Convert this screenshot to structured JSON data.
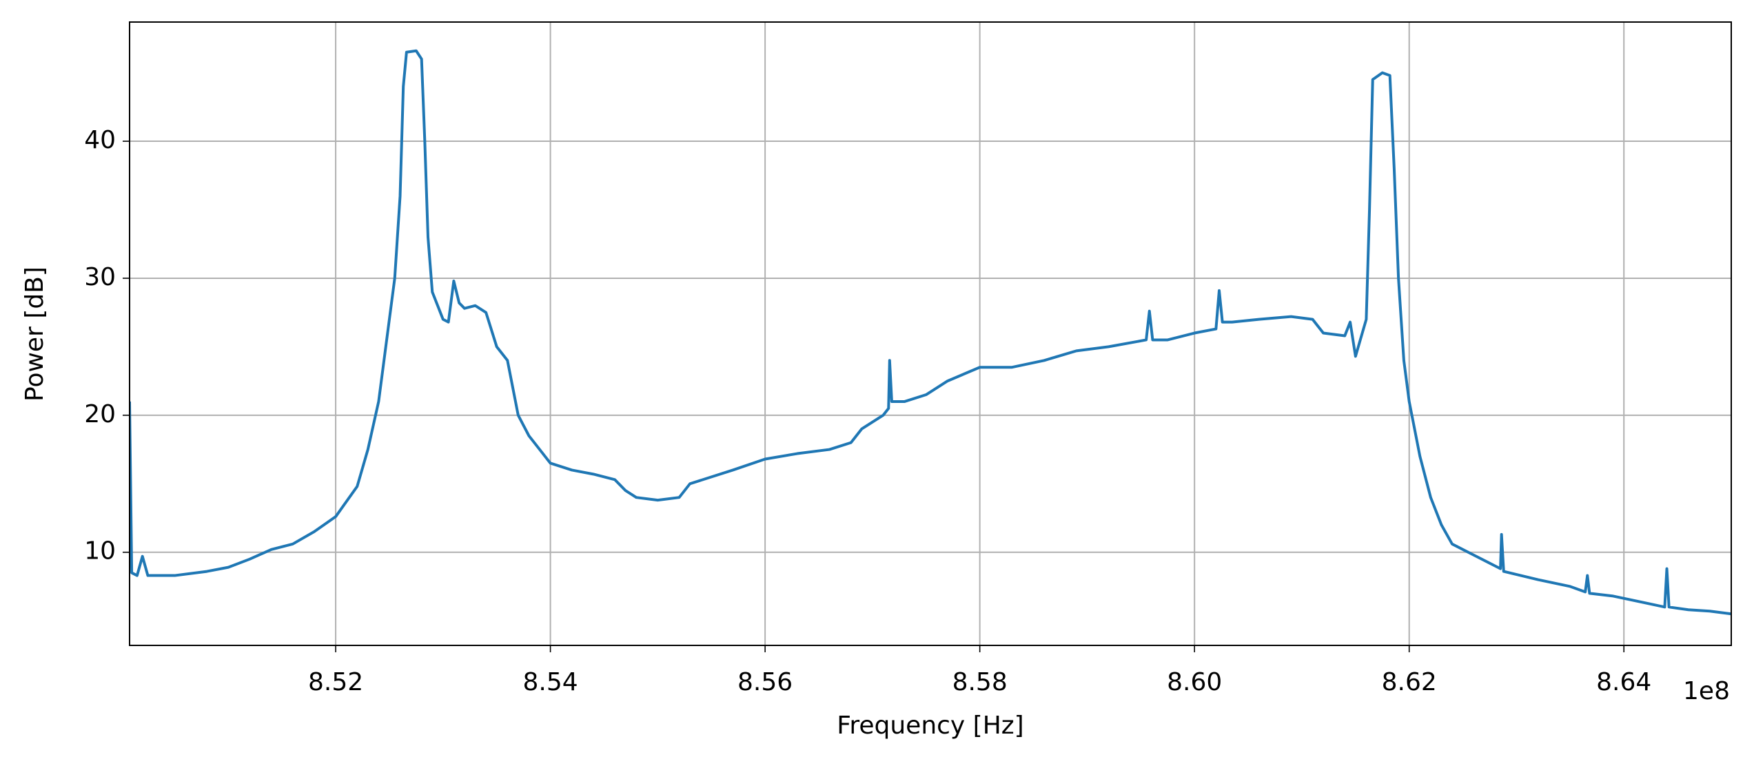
{
  "chart_data": {
    "type": "line",
    "x_label": "Frequency [Hz]",
    "y_label": "Power [dB]",
    "x_offset_label": "1e8",
    "xlim": [
      850080000,
      865000000
    ],
    "ylim": [
      3.2,
      48.7
    ],
    "xticks": [
      {
        "value": 852000000,
        "label": "8.52"
      },
      {
        "value": 854000000,
        "label": "8.54"
      },
      {
        "value": 856000000,
        "label": "8.56"
      },
      {
        "value": 858000000,
        "label": "8.58"
      },
      {
        "value": 860000000,
        "label": "8.60"
      },
      {
        "value": 862000000,
        "label": "8.62"
      },
      {
        "value": 864000000,
        "label": "8.64"
      }
    ],
    "yticks": [
      10,
      20,
      30,
      40
    ],
    "grid": true,
    "series": [
      {
        "color": "#1f77b4",
        "x": [
          850080000,
          850100000,
          850150000,
          850200000,
          850250000,
          850500000,
          850800000,
          851000000,
          851200000,
          851400000,
          851600000,
          851800000,
          852000000,
          852200000,
          852300000,
          852400000,
          852500000,
          852550000,
          852600000,
          852630000,
          852660000,
          852750000,
          852800000,
          852830000,
          852860000,
          852900000,
          853000000,
          853050000,
          853100000,
          853150000,
          853200000,
          853300000,
          853400000,
          853500000,
          853600000,
          853650000,
          853700000,
          853800000,
          853900000,
          854000000,
          854200000,
          854400000,
          854600000,
          854700000,
          854800000,
          855000000,
          855200000,
          855300000,
          855500000,
          855700000,
          856000000,
          856300000,
          856600000,
          856800000,
          856900000,
          857100000,
          857150000,
          857160000,
          857180000,
          857300000,
          857500000,
          857700000,
          858000000,
          858300000,
          858600000,
          858900000,
          859200000,
          859550000,
          859580000,
          859610000,
          859750000,
          860000000,
          860200000,
          860230000,
          860260000,
          860350000,
          860600000,
          860900000,
          861100000,
          861200000,
          861400000,
          861450000,
          861500000,
          861600000,
          861630000,
          861660000,
          861750000,
          861820000,
          861860000,
          861900000,
          861950000,
          862000000,
          862100000,
          862200000,
          862300000,
          862400000,
          862600000,
          862800000,
          862850000,
          862860000,
          862880000,
          863200000,
          863500000,
          863640000,
          863660000,
          863680000,
          863900000,
          864200000,
          864380000,
          864400000,
          864420000,
          864600000,
          864800000,
          865000000
        ],
        "values": [
          21,
          8.5,
          8.3,
          9.7,
          8.3,
          8.3,
          8.6,
          8.9,
          9.5,
          10.2,
          10.6,
          11.5,
          12.6,
          14.8,
          17.5,
          21,
          27,
          30,
          36,
          44,
          46.5,
          46.6,
          46,
          40,
          33,
          29,
          27,
          26.8,
          29.8,
          28.2,
          27.8,
          28,
          27.5,
          25,
          24,
          22,
          20,
          18.5,
          17.5,
          16.5,
          16,
          15.7,
          15.3,
          14.5,
          14,
          13.8,
          14,
          15,
          15.5,
          16,
          16.8,
          17.2,
          17.5,
          18,
          19,
          20,
          20.5,
          24,
          21,
          21,
          21.5,
          22.5,
          23.5,
          23.5,
          24,
          24.7,
          25,
          25.5,
          27.6,
          25.5,
          25.5,
          26,
          26.3,
          29.1,
          26.8,
          26.8,
          27,
          27.2,
          27,
          26,
          25.8,
          26.8,
          24.3,
          27,
          35,
          44.5,
          45,
          44.8,
          38,
          30,
          24,
          21,
          17,
          14,
          12,
          10.6,
          9.8,
          9.0,
          8.8,
          11.3,
          8.6,
          8,
          7.5,
          7.1,
          8.3,
          7,
          6.8,
          6.3,
          6,
          8.8,
          6,
          5.8,
          5.7,
          5.5
        ]
      }
    ]
  }
}
